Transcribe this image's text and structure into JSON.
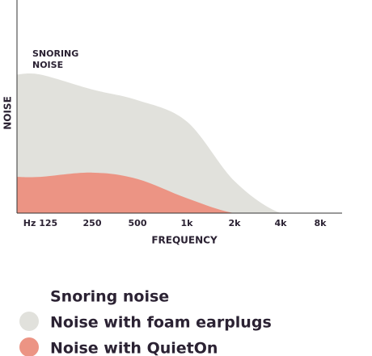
{
  "chart_data": {
    "type": "area",
    "annotation": [
      "SNORING",
      "NOISE"
    ],
    "x_label": "FREQUENCY",
    "y_label": "NOISE",
    "categories": [
      "Hz 125",
      "250",
      "500",
      "1k",
      "2k",
      "4k",
      "8k"
    ],
    "ylim": [
      0,
      100
    ],
    "legend_title": "Snoring noise",
    "series": [
      {
        "name": "Noise with foam earplugs",
        "color": "#e1e1dc",
        "values": [
          65,
          58,
          53,
          43,
          15,
          0,
          0
        ]
      },
      {
        "name": "Noise with QuietOn",
        "color": "#ec9484",
        "values": [
          17,
          19,
          16,
          7,
          0,
          0,
          0
        ]
      }
    ]
  }
}
